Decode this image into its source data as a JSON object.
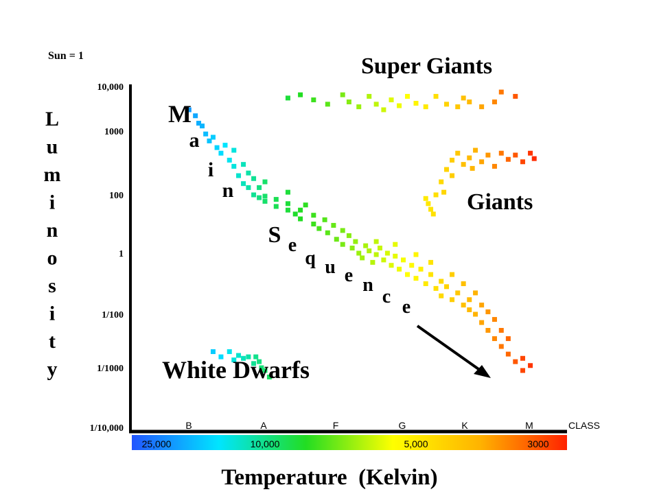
{
  "chart_data": {
    "type": "scatter",
    "title": "",
    "unit_note": "Sun = 1",
    "ylabel": "Luminosity",
    "xlabel": "Temperature  (Kelvin)",
    "x_axis_reversed": true,
    "y_scale": "log",
    "y_ticks": [
      {
        "value": 10000,
        "label": "10,000"
      },
      {
        "value": 1000,
        "label": "1000"
      },
      {
        "value": 100,
        "label": "100"
      },
      {
        "value": 1,
        "label": "1"
      },
      {
        "value": 0.01,
        "label": "1/100"
      },
      {
        "value": 0.001,
        "label": "1/1000"
      },
      {
        "value": 0.0001,
        "label": "1/10,000"
      }
    ],
    "spectral_classes": [
      "B",
      "A",
      "F",
      "G",
      "K",
      "M"
    ],
    "class_axis_label": "CLASS",
    "temperature_labels": [
      "25,000",
      "10,000",
      "5,000",
      "3000"
    ],
    "temperature_colors": [
      "#2255ff",
      "#00e5ff",
      "#22dd22",
      "#ffff00",
      "#ffb300",
      "#ff2200"
    ],
    "region_labels": {
      "super_giants": "Super Giants",
      "giants": "Giants",
      "white_dwarfs": "White Dwarfs",
      "main": [
        "M",
        "a",
        "i",
        "n"
      ],
      "sequence": [
        "S",
        "e",
        "q",
        "u",
        "e",
        "n",
        "c",
        "e"
      ]
    },
    "series": [
      {
        "name": "Main Sequence",
        "points": [
          {
            "t": 19000,
            "l": 3000
          },
          {
            "t": 18000,
            "l": 2200
          },
          {
            "t": 17500,
            "l": 1500
          },
          {
            "t": 17000,
            "l": 1300
          },
          {
            "t": 16500,
            "l": 900
          },
          {
            "t": 16000,
            "l": 700
          },
          {
            "t": 15500,
            "l": 800
          },
          {
            "t": 15000,
            "l": 550
          },
          {
            "t": 14500,
            "l": 450
          },
          {
            "t": 14000,
            "l": 600
          },
          {
            "t": 13500,
            "l": 350
          },
          {
            "t": 13000,
            "l": 280
          },
          {
            "t": 13000,
            "l": 500
          },
          {
            "t": 12500,
            "l": 200
          },
          {
            "t": 12000,
            "l": 150
          },
          {
            "t": 12000,
            "l": 300
          },
          {
            "t": 11500,
            "l": 130
          },
          {
            "t": 11500,
            "l": 220
          },
          {
            "t": 11000,
            "l": 100
          },
          {
            "t": 11000,
            "l": 180
          },
          {
            "t": 10500,
            "l": 80
          },
          {
            "t": 10500,
            "l": 130
          },
          {
            "t": 10000,
            "l": 60
          },
          {
            "t": 10000,
            "l": 90
          },
          {
            "t": 10000,
            "l": 160
          },
          {
            "t": 9500,
            "l": 40
          },
          {
            "t": 9500,
            "l": 70
          },
          {
            "t": 9000,
            "l": 30
          },
          {
            "t": 9000,
            "l": 50
          },
          {
            "t": 9000,
            "l": 110
          },
          {
            "t": 8700,
            "l": 22
          },
          {
            "t": 8500,
            "l": 15
          },
          {
            "t": 8500,
            "l": 30
          },
          {
            "t": 8300,
            "l": 45
          },
          {
            "t": 8000,
            "l": 10
          },
          {
            "t": 8000,
            "l": 20
          },
          {
            "t": 7800,
            "l": 7
          },
          {
            "t": 7600,
            "l": 14
          },
          {
            "t": 7500,
            "l": 5
          },
          {
            "t": 7300,
            "l": 9
          },
          {
            "t": 7200,
            "l": 3
          },
          {
            "t": 7000,
            "l": 6
          },
          {
            "t": 7000,
            "l": 2
          },
          {
            "t": 6800,
            "l": 4
          },
          {
            "t": 6700,
            "l": 1.5
          },
          {
            "t": 6600,
            "l": 2.5
          },
          {
            "t": 6500,
            "l": 1
          },
          {
            "t": 6400,
            "l": 0.7
          },
          {
            "t": 6300,
            "l": 1.8
          },
          {
            "t": 6200,
            "l": 1.2
          },
          {
            "t": 6100,
            "l": 0.5
          },
          {
            "t": 6000,
            "l": 0.9
          },
          {
            "t": 6000,
            "l": 2.5
          },
          {
            "t": 5900,
            "l": 1.5
          },
          {
            "t": 5800,
            "l": 0.6
          },
          {
            "t": 5700,
            "l": 1
          },
          {
            "t": 5600,
            "l": 0.4
          },
          {
            "t": 5500,
            "l": 0.8
          },
          {
            "t": 5500,
            "l": 2
          },
          {
            "t": 5400,
            "l": 0.3
          },
          {
            "t": 5300,
            "l": 0.6
          },
          {
            "t": 5200,
            "l": 0.2
          },
          {
            "t": 5100,
            "l": 0.4
          },
          {
            "t": 5000,
            "l": 0.15
          },
          {
            "t": 5000,
            "l": 0.9
          },
          {
            "t": 4900,
            "l": 0.3
          },
          {
            "t": 4800,
            "l": 0.1
          },
          {
            "t": 4700,
            "l": 0.2
          },
          {
            "t": 4700,
            "l": 0.5
          },
          {
            "t": 4600,
            "l": 0.07
          },
          {
            "t": 4500,
            "l": 0.12
          },
          {
            "t": 4500,
            "l": 0.04
          },
          {
            "t": 4400,
            "l": 0.08
          },
          {
            "t": 4300,
            "l": 0.03
          },
          {
            "t": 4300,
            "l": 0.2
          },
          {
            "t": 4200,
            "l": 0.05
          },
          {
            "t": 4100,
            "l": 0.02
          },
          {
            "t": 4100,
            "l": 0.1
          },
          {
            "t": 4000,
            "l": 0.014
          },
          {
            "t": 4000,
            "l": 0.03
          },
          {
            "t": 3900,
            "l": 0.01
          },
          {
            "t": 3900,
            "l": 0.05
          },
          {
            "t": 3800,
            "l": 0.007
          },
          {
            "t": 3800,
            "l": 0.02
          },
          {
            "t": 3700,
            "l": 0.005
          },
          {
            "t": 3700,
            "l": 0.012
          },
          {
            "t": 3600,
            "l": 0.0035
          },
          {
            "t": 3600,
            "l": 0.008
          },
          {
            "t": 3500,
            "l": 0.0025
          },
          {
            "t": 3500,
            "l": 0.005
          },
          {
            "t": 3400,
            "l": 0.0018
          },
          {
            "t": 3400,
            "l": 0.0035
          },
          {
            "t": 3300,
            "l": 0.0013
          },
          {
            "t": 3200,
            "l": 0.0009
          },
          {
            "t": 3200,
            "l": 0.0015
          },
          {
            "t": 3100,
            "l": 0.0011
          }
        ]
      },
      {
        "name": "Super Giants",
        "points": [
          {
            "t": 9000,
            "l": 5500
          },
          {
            "t": 8500,
            "l": 6500
          },
          {
            "t": 8000,
            "l": 5000
          },
          {
            "t": 7500,
            "l": 4000
          },
          {
            "t": 7000,
            "l": 6500
          },
          {
            "t": 6800,
            "l": 4500
          },
          {
            "t": 6500,
            "l": 3500
          },
          {
            "t": 6200,
            "l": 6000
          },
          {
            "t": 6000,
            "l": 4000
          },
          {
            "t": 5800,
            "l": 3000
          },
          {
            "t": 5600,
            "l": 5000
          },
          {
            "t": 5400,
            "l": 3700
          },
          {
            "t": 5200,
            "l": 6000
          },
          {
            "t": 5000,
            "l": 4200
          },
          {
            "t": 4800,
            "l": 3500
          },
          {
            "t": 4600,
            "l": 6000
          },
          {
            "t": 4400,
            "l": 4000
          },
          {
            "t": 4200,
            "l": 3500
          },
          {
            "t": 4100,
            "l": 5500
          },
          {
            "t": 4000,
            "l": 4500
          },
          {
            "t": 3800,
            "l": 3500
          },
          {
            "t": 3600,
            "l": 4500
          },
          {
            "t": 3500,
            "l": 7500
          },
          {
            "t": 3300,
            "l": 6000
          }
        ]
      },
      {
        "name": "Giants",
        "points": [
          {
            "t": 4800,
            "l": 75
          },
          {
            "t": 4750,
            "l": 50
          },
          {
            "t": 4700,
            "l": 32
          },
          {
            "t": 4650,
            "l": 22
          },
          {
            "t": 4600,
            "l": 100
          },
          {
            "t": 4500,
            "l": 160
          },
          {
            "t": 4450,
            "l": 110
          },
          {
            "t": 4400,
            "l": 250
          },
          {
            "t": 4300,
            "l": 200
          },
          {
            "t": 4300,
            "l": 350
          },
          {
            "t": 4200,
            "l": 450
          },
          {
            "t": 4100,
            "l": 300
          },
          {
            "t": 4000,
            "l": 380
          },
          {
            "t": 3950,
            "l": 260
          },
          {
            "t": 3900,
            "l": 500
          },
          {
            "t": 3800,
            "l": 330
          },
          {
            "t": 3700,
            "l": 420
          },
          {
            "t": 3600,
            "l": 280
          },
          {
            "t": 3500,
            "l": 450
          },
          {
            "t": 3400,
            "l": 360
          },
          {
            "t": 3300,
            "l": 420
          },
          {
            "t": 3200,
            "l": 330
          },
          {
            "t": 3100,
            "l": 450
          },
          {
            "t": 3050,
            "l": 370
          }
        ]
      },
      {
        "name": "White Dwarfs",
        "points": [
          {
            "t": 15500,
            "l": 0.002
          },
          {
            "t": 14500,
            "l": 0.0016
          },
          {
            "t": 13500,
            "l": 0.002
          },
          {
            "t": 13000,
            "l": 0.0014
          },
          {
            "t": 12500,
            "l": 0.0017
          },
          {
            "t": 12000,
            "l": 0.0015
          },
          {
            "t": 11500,
            "l": 0.0016
          },
          {
            "t": 11000,
            "l": 0.0012
          },
          {
            "t": 10800,
            "l": 0.0016
          },
          {
            "t": 10500,
            "l": 0.0013
          },
          {
            "t": 10300,
            "l": 0.001
          },
          {
            "t": 10000,
            "l": 0.0009
          },
          {
            "t": 9800,
            "l": 0.0007
          }
        ]
      }
    ]
  }
}
